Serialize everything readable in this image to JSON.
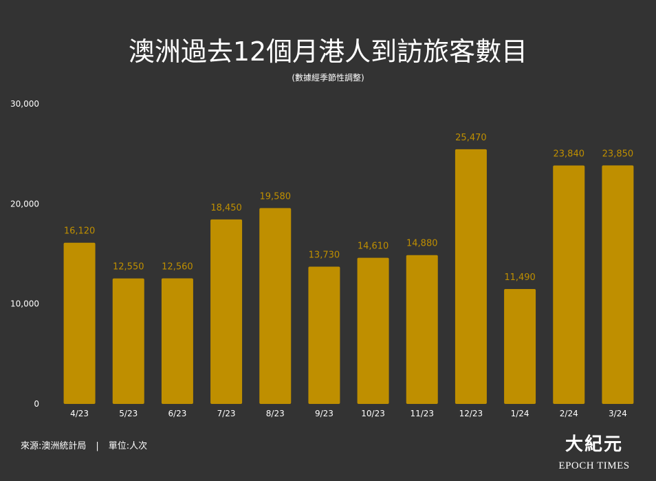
{
  "chart_data": {
    "type": "bar",
    "title": "澳洲過去12個月港人到訪旅客數目",
    "subtitle": "(數據經季節性調整)",
    "categories": [
      "4/23",
      "5/23",
      "6/23",
      "7/23",
      "8/23",
      "9/23",
      "10/23",
      "11/23",
      "12/23",
      "1/24",
      "2/24",
      "3/24"
    ],
    "values": [
      16120,
      12550,
      12560,
      18450,
      19580,
      13730,
      14610,
      14880,
      25470,
      11490,
      23840,
      23850
    ],
    "value_labels": [
      "16,120",
      "12,550",
      "12,560",
      "18,450",
      "19,580",
      "13,730",
      "14,610",
      "14,880",
      "25,470",
      "11,490",
      "23,840",
      "23,850"
    ],
    "ylim": [
      0,
      30000
    ],
    "yticks": [
      0,
      10000,
      20000,
      30000
    ],
    "ytick_labels": [
      "0",
      "10,000",
      "20,000",
      "30,000"
    ],
    "xlabel": "",
    "ylabel": "",
    "grid": false,
    "bar_color": "#bf8f00",
    "label_color": "#bf8f00"
  },
  "footer": {
    "source": "來源:澳洲統計局",
    "separator": "|",
    "unit": "單位:人次"
  },
  "logo": {
    "chinese": "大紀元",
    "english": "EPOCH TIMES"
  }
}
